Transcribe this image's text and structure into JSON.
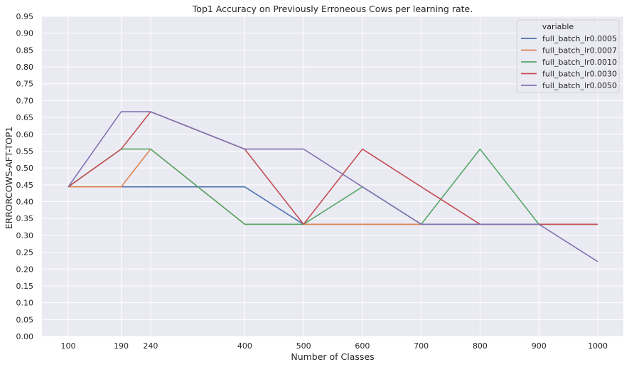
{
  "chart_data": {
    "type": "line",
    "title": "Top1 Accuracy on Previously Erroneous Cows per learning rate.",
    "xlabel": "Number of Classes",
    "ylabel": "ERRORCOWS-AFT-TOP1",
    "x": [
      100,
      190,
      240,
      400,
      500,
      600,
      700,
      800,
      900,
      1000
    ],
    "xticks": [
      "100",
      "190",
      "240",
      "400",
      "500",
      "600",
      "700",
      "800",
      "900",
      "1000"
    ],
    "ylim": [
      0,
      0.95
    ],
    "yticks": [
      "0.00",
      "0.05",
      "0.10",
      "0.15",
      "0.20",
      "0.25",
      "0.30",
      "0.35",
      "0.40",
      "0.45",
      "0.50",
      "0.55",
      "0.60",
      "0.65",
      "0.70",
      "0.75",
      "0.80",
      "0.85",
      "0.90",
      "0.95"
    ],
    "grid": true,
    "legend_title": "variable",
    "legend_position": "top-right",
    "series": [
      {
        "name": "full_batch_lr0.0005",
        "color": "#4c72b0",
        "values": [
          0.444,
          0.444,
          0.444,
          0.444,
          0.333,
          0.333,
          0.333,
          0.333,
          0.333,
          0.333
        ]
      },
      {
        "name": "full_batch_lr0.0007",
        "color": "#dd8452",
        "values": [
          0.444,
          0.444,
          0.556,
          0.333,
          0.333,
          0.333,
          0.333,
          0.333,
          0.333,
          0.333
        ]
      },
      {
        "name": "full_batch_lr0.0010",
        "color": "#55a868",
        "values": [
          0.444,
          0.556,
          0.556,
          0.333,
          0.333,
          0.444,
          0.333,
          0.556,
          0.333,
          0.333
        ]
      },
      {
        "name": "full_batch_lr0.0030",
        "color": "#c44e52",
        "values": [
          0.444,
          0.556,
          0.667,
          0.556,
          0.333,
          0.556,
          0.444,
          0.333,
          0.333,
          0.333
        ]
      },
      {
        "name": "full_batch_lr0.0050",
        "color": "#8172b3",
        "values": [
          0.444,
          0.667,
          0.667,
          0.556,
          0.556,
          0.444,
          0.333,
          0.333,
          0.333,
          0.222
        ]
      }
    ]
  }
}
